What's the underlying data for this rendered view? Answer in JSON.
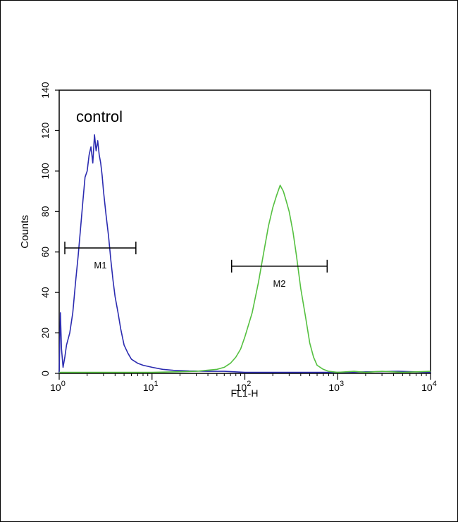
{
  "chart_data": {
    "type": "line",
    "xlabel": "FL1-H",
    "ylabel": "Counts",
    "x_scale": "log",
    "xlim": [
      1,
      10000
    ],
    "ylim": [
      0,
      140
    ],
    "x_ticks": [
      {
        "value": 1,
        "base": "10",
        "exp": "0"
      },
      {
        "value": 10,
        "base": "10",
        "exp": "1"
      },
      {
        "value": 100,
        "base": "10",
        "exp": "2"
      },
      {
        "value": 1000,
        "base": "10",
        "exp": "3"
      },
      {
        "value": 10000,
        "base": "10",
        "exp": "4"
      }
    ],
    "y_ticks": [
      "0",
      "20",
      "40",
      "60",
      "80",
      "100",
      "120",
      "140"
    ],
    "annotation": "control",
    "grid": false,
    "series": [
      {
        "color": "#2b2bb0",
        "x": [
          1.0,
          1.03,
          1.06,
          1.1,
          1.15,
          1.2,
          1.3,
          1.4,
          1.5,
          1.6,
          1.7,
          1.8,
          1.9,
          2.0,
          2.1,
          2.2,
          2.3,
          2.4,
          2.5,
          2.6,
          2.7,
          2.8,
          2.9,
          3.0,
          3.2,
          3.4,
          3.6,
          3.8,
          4.0,
          4.3,
          4.6,
          5.0,
          5.5,
          6.0,
          7.0,
          8.0,
          10.0,
          13.0,
          17.0,
          25.0,
          40.0,
          60.0,
          100.0,
          300.0,
          1000.0,
          4500.0,
          10000.0
        ],
        "y": [
          0,
          30,
          12,
          3,
          8,
          14,
          20,
          30,
          45,
          58,
          72,
          85,
          97,
          100,
          108,
          112,
          104,
          118,
          110,
          115,
          108,
          104,
          98,
          90,
          78,
          68,
          56,
          46,
          38,
          30,
          22,
          14,
          10,
          7,
          5,
          4,
          3,
          2,
          1.5,
          1.2,
          1,
          1,
          0.5,
          0.5,
          0.5,
          1,
          0.5
        ]
      },
      {
        "color": "#55c040",
        "x": [
          1.0,
          10.0,
          30.0,
          50.0,
          60.0,
          70.0,
          80.0,
          90.0,
          100.0,
          120.0,
          140.0,
          160.0,
          180.0,
          200.0,
          220.0,
          240.0,
          260.0,
          280.0,
          300.0,
          330.0,
          360.0,
          400.0,
          450.0,
          500.0,
          550.0,
          600.0,
          700.0,
          800.0,
          1000.0,
          1500.0,
          2000.0,
          3000.0,
          5000.0,
          10000.0
        ],
        "y": [
          0.5,
          0.5,
          1,
          2,
          3,
          5,
          8,
          12,
          18,
          30,
          45,
          60,
          73,
          82,
          88,
          93,
          90,
          85,
          80,
          70,
          58,
          42,
          28,
          15,
          8,
          4,
          2,
          1,
          0.5,
          1,
          0.5,
          1,
          0.5,
          1
        ]
      }
    ],
    "markers": [
      {
        "label": "M1",
        "x_start": 1.15,
        "x_end": 6.7,
        "y": 62
      },
      {
        "label": "M2",
        "x_start": 72,
        "x_end": 770,
        "y": 53
      }
    ]
  }
}
